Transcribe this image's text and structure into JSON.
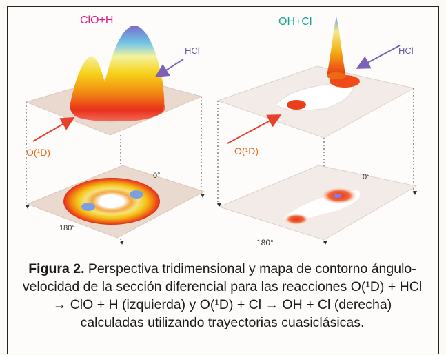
{
  "figure": {
    "left_panel": {
      "title": "ClO+H",
      "title_color": "#e0177f",
      "reagent_label": "HCl",
      "reactant_label": "O(¹D)",
      "angle_zero": "0°",
      "angle_180": "180°"
    },
    "right_panel": {
      "title": "OH+Cl",
      "title_color": "#1aa39a",
      "reagent_label": "HCl",
      "reactant_label": "O(¹D)",
      "angle_zero": "0°",
      "angle_180": "180°"
    },
    "colors": {
      "arrow_red": "#e8402a",
      "arrow_purple": "#7b62b8",
      "reactant_text": "#e06a1a",
      "hcl_text": "#6a5aa6"
    }
  },
  "caption": {
    "label": "Figura 2.",
    "text": "Perspectiva tridimensional y mapa de contorno ángulo-velocidad de la sección diferencial para las reacciones O(¹D) + HCl → ClO + H  (izquierda) y O(¹D) + Cl → OH + Cl (derecha) calculadas utilizando trayectorias cuasiclásicas."
  }
}
